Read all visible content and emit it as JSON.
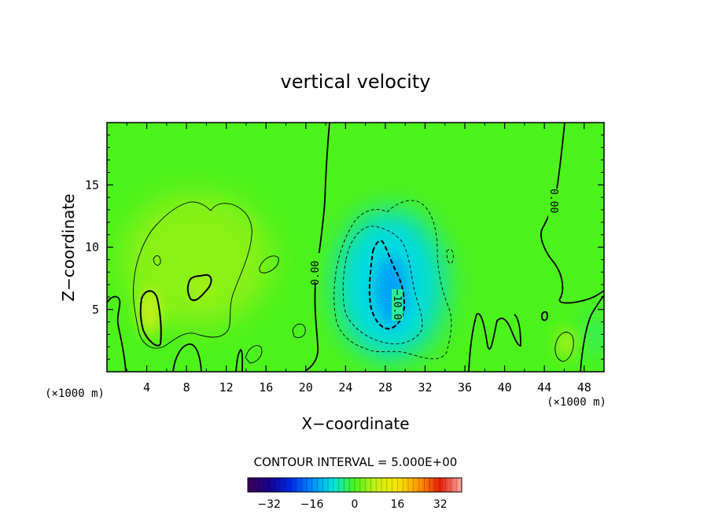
{
  "chart_data": {
    "type": "heatmap",
    "title": "vertical velocity",
    "xlabel": "X−coordinate",
    "ylabel": "Z−coordinate",
    "x_unit_left": "(×1000 m)",
    "x_unit_right": "(×1000 m)",
    "xlim": [
      0,
      50
    ],
    "ylim": [
      0,
      20
    ],
    "x_ticks": [
      4,
      8,
      12,
      16,
      20,
      24,
      28,
      32,
      36,
      40,
      44,
      48
    ],
    "y_ticks": [
      5,
      10,
      15
    ],
    "contour_interval_text": "CONTOUR INTERVAL = 5.000E+00",
    "contour_labels": [
      "0.00",
      "−10.0",
      "0.00"
    ],
    "colorbar": {
      "range": [
        -40,
        40
      ],
      "ticks": [
        -32,
        -16,
        0,
        16,
        32
      ],
      "tick_labels": [
        "−32",
        "−16",
        "0",
        "16",
        "32"
      ]
    },
    "field": {
      "background_value": 0,
      "features": [
        {
          "kind": "updraft_region",
          "x_center": 9,
          "z_center": 9,
          "value": 4
        },
        {
          "kind": "updraft_core",
          "x_center": 4.3,
          "z_center": 4.8,
          "value": 8
        },
        {
          "kind": "updraft_core",
          "x_center": 9.5,
          "z_center": 6.8,
          "value": 6
        },
        {
          "kind": "downdraft_region",
          "x_center": 28.5,
          "z_center": 7,
          "value": -9
        },
        {
          "kind": "downdraft_core",
          "x_center": 28.6,
          "z_center": 6.5,
          "value": -14
        },
        {
          "kind": "updraft_core",
          "x_center": 46.2,
          "z_center": 2.3,
          "value": 6
        },
        {
          "kind": "downdraft_region",
          "x_center": 49.5,
          "z_center": 3,
          "value": -5
        }
      ]
    }
  }
}
